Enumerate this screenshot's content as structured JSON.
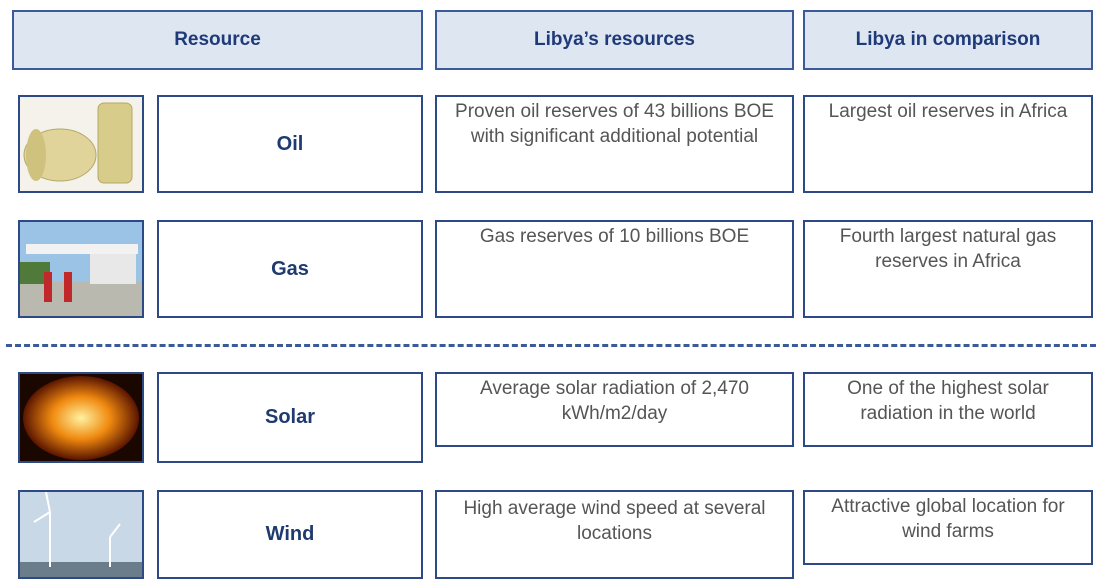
{
  "header": {
    "columns": [
      "Resource",
      "Libya’s resources",
      "Libya in comparison"
    ]
  },
  "rows": [
    {
      "resource": "Oil",
      "resources": "Proven oil reserves of 43 billions BOE with significant additional potential",
      "comparison": "Largest oil reserves in Africa"
    },
    {
      "resource": "Gas",
      "resources": "Gas reserves of 10 billions BOE",
      "comparison": "Fourth largest natural gas reserves in Africa"
    },
    {
      "resource": "Solar",
      "resources": "Average solar radiation of 2,470 kWh/m2/day",
      "comparison": "One of the highest solar radiation in the world"
    },
    {
      "resource": "Wind",
      "resources": "High average wind speed at several locations",
      "comparison": "Attractive global location for wind farms"
    }
  ]
}
